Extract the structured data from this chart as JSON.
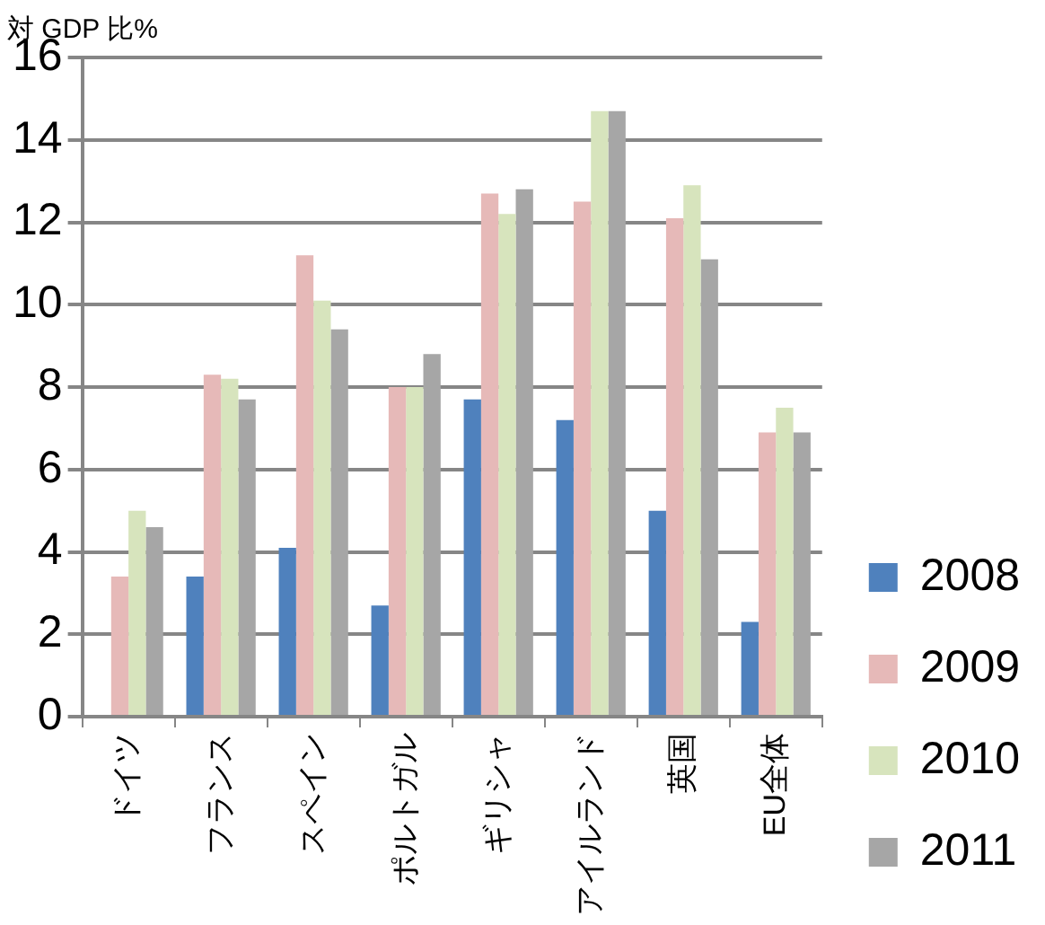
{
  "chart_data": {
    "type": "bar",
    "ylabel": "対 GDP 比%",
    "categories": [
      "ドイツ",
      "フランス",
      "スペイン",
      "ポルトガル",
      "ギリシャ",
      "アイルランド",
      "英国",
      "EU全体"
    ],
    "series": [
      {
        "name": "2008",
        "color": "#4f81bd",
        "values": [
          null,
          3.4,
          4.1,
          2.7,
          7.7,
          7.2,
          5.0,
          2.3
        ]
      },
      {
        "name": "2009",
        "color": "#e6b9b8",
        "values": [
          3.4,
          8.3,
          11.2,
          8.0,
          12.7,
          12.5,
          12.1,
          6.9
        ]
      },
      {
        "name": "2010",
        "color": "#d7e4bd",
        "values": [
          5.0,
          8.2,
          10.1,
          8.0,
          12.2,
          14.7,
          12.9,
          7.5
        ]
      },
      {
        "name": "2011",
        "color": "#a6a6a6",
        "values": [
          4.6,
          7.7,
          9.4,
          8.8,
          12.8,
          14.7,
          11.1,
          6.9
        ]
      }
    ],
    "ylim": [
      0,
      16
    ],
    "yticks": [
      0,
      2,
      4,
      6,
      8,
      10,
      12,
      14,
      16
    ],
    "grid": "y",
    "legend": "right"
  }
}
